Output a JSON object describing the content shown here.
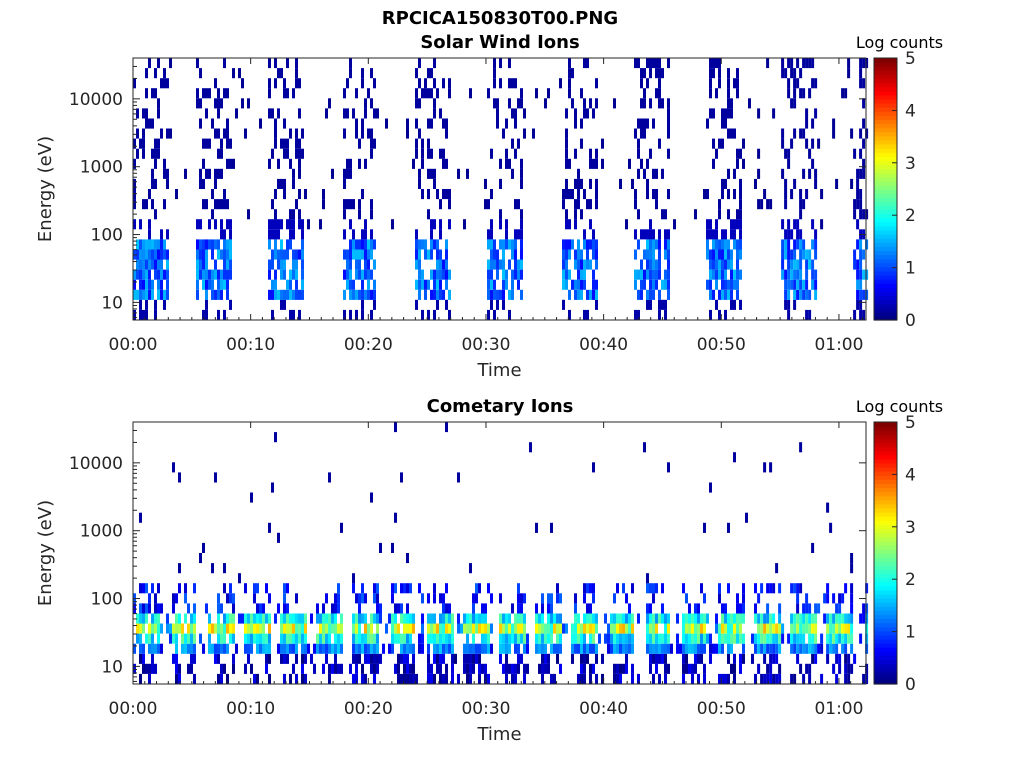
{
  "figure_title": "RPCICA150830T00.PNG",
  "chart_data": [
    {
      "type": "heatmap",
      "title": "Solar Wind Ions",
      "xlabel": "Time",
      "ylabel": "Energy (eV)",
      "y_scale": "log",
      "ylim": [
        5.5,
        40000
      ],
      "xlim_minutes": [
        0,
        62.3
      ],
      "x_ticks": [
        "00:00",
        "00:10",
        "00:20",
        "00:30",
        "00:40",
        "00:50",
        "01:00"
      ],
      "x_tick_minutes": [
        0,
        10,
        20,
        30,
        40,
        50,
        60
      ],
      "y_ticks": [
        "10",
        "100",
        "1000",
        "10000"
      ],
      "y_tick_values": [
        10,
        100,
        1000,
        10000
      ],
      "colorbar": {
        "label": "Log counts",
        "range": [
          0,
          5
        ],
        "ticks": [
          "0",
          "1",
          "2",
          "3",
          "4",
          "5"
        ],
        "colormap": "jet"
      },
      "grid": false,
      "pattern": "bursts every ~6.2 min; faint scattered counts 10 eV-30 keV, peak ~1.5 log counts near 25-35 eV",
      "burst_start_minutes": [
        0.0,
        5.2,
        11.4,
        17.6,
        23.8,
        30.0,
        36.3,
        42.5,
        48.7,
        54.9,
        61.0
      ],
      "peak_energy_ev": 30,
      "peak_log_counts": 1.6
    },
    {
      "type": "heatmap",
      "title": "Cometary Ions",
      "xlabel": "Time",
      "ylabel": "Energy (eV)",
      "y_scale": "log",
      "ylim": [
        5.5,
        40000
      ],
      "xlim_minutes": [
        0,
        62.3
      ],
      "x_ticks": [
        "00:00",
        "00:10",
        "00:20",
        "00:30",
        "00:40",
        "00:50",
        "01:00"
      ],
      "x_tick_minutes": [
        0,
        10,
        20,
        30,
        40,
        50,
        60
      ],
      "y_ticks": [
        "10",
        "100",
        "1000",
        "10000"
      ],
      "y_tick_values": [
        10,
        100,
        1000,
        10000
      ],
      "colorbar": {
        "label": "Log counts",
        "range": [
          0,
          5
        ],
        "ticks": [
          "0",
          "1",
          "2",
          "3",
          "4",
          "5"
        ],
        "colormap": "jet"
      },
      "grid": false,
      "pattern": "strong band 15-45 eV with peaks ~3.5 log counts every ~3 min; sparse high-energy dots",
      "band_energy_ev": [
        15,
        45
      ],
      "peak_log_counts": 3.6,
      "burst_period_minutes": 3.1
    }
  ]
}
